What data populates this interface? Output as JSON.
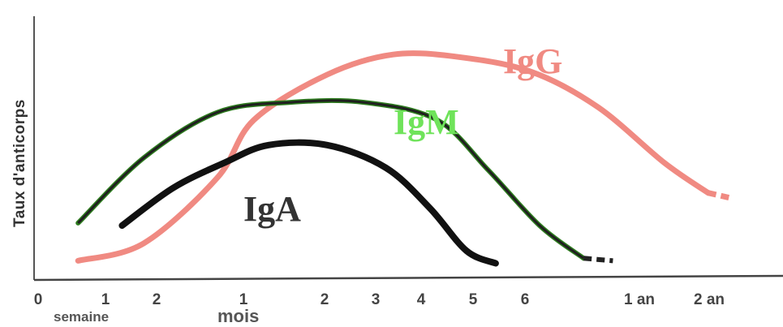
{
  "chart_data": {
    "type": "line",
    "title": "",
    "ylabel": "Taux d'anticorps",
    "x_ticks": [
      "0",
      "1",
      "2",
      "1",
      "2",
      "3",
      "4",
      "5",
      "6",
      "1 an",
      "2 an"
    ],
    "x_units": [
      "semaine",
      "mois"
    ],
    "grid": false,
    "legend": "labels placed on curves",
    "series": [
      {
        "name": "IgG",
        "color": "#f08a82",
        "points": [
          [
            0.6,
            0.06
          ],
          [
            1.5,
            0.13
          ],
          [
            2.5,
            0.39
          ],
          [
            3,
            0.62
          ],
          [
            4,
            0.8
          ],
          [
            4.9,
            0.88
          ],
          [
            5.8,
            0.87
          ],
          [
            6.8,
            0.81
          ],
          [
            7.7,
            0.67
          ],
          [
            8.6,
            0.45
          ],
          [
            9.2,
            0.33
          ],
          [
            9.5,
            0.31
          ]
        ],
        "dashed_tail_from": 8.8
      },
      {
        "name": "IgM",
        "color": "#2e7d1f",
        "points": [
          [
            0.6,
            0.21
          ],
          [
            1.5,
            0.47
          ],
          [
            2.5,
            0.65
          ],
          [
            3.5,
            0.69
          ],
          [
            4.5,
            0.69
          ],
          [
            5.5,
            0.62
          ],
          [
            6.2,
            0.42
          ],
          [
            6.9,
            0.2
          ],
          [
            7.5,
            0.07
          ],
          [
            7.9,
            0.06
          ]
        ],
        "dashed_tail_from": 7.3
      },
      {
        "name": "IgA",
        "color": "#111111",
        "points": [
          [
            1.2,
            0.2
          ],
          [
            1.9,
            0.35
          ],
          [
            2.6,
            0.45
          ],
          [
            3.2,
            0.52
          ],
          [
            4,
            0.52
          ],
          [
            4.8,
            0.43
          ],
          [
            5.4,
            0.27
          ],
          [
            5.9,
            0.1
          ],
          [
            6.3,
            0.05
          ]
        ]
      }
    ]
  }
}
